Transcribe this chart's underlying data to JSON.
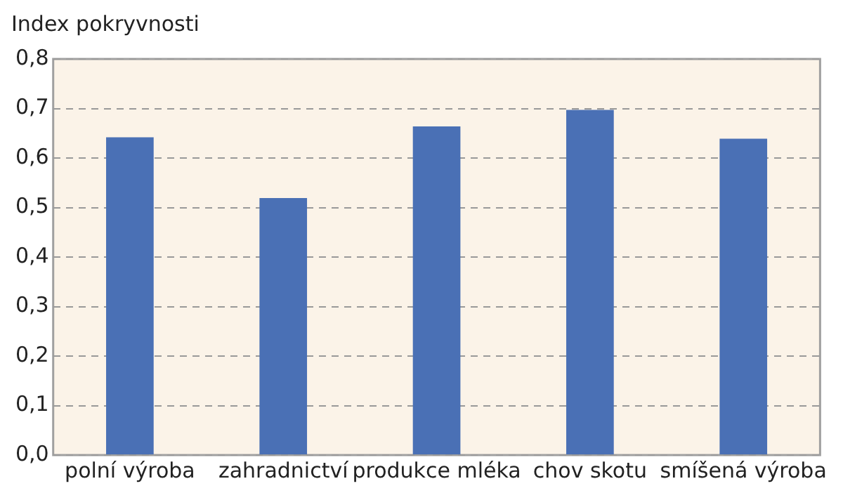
{
  "chart_data": {
    "type": "bar",
    "ylabel": "Index pokryvnosti",
    "categories": [
      "polní výroba",
      "zahradnictví",
      "produkce mléka",
      "chov skotu",
      "smíšená výroba"
    ],
    "values": [
      0.642,
      0.519,
      0.664,
      0.697,
      0.639
    ],
    "color": "#4a70b5",
    "ylim": [
      0,
      0.8
    ],
    "yticks": [
      {
        "value": 0,
        "label": "0,0"
      },
      {
        "value": 0.1,
        "label": "0,1"
      },
      {
        "value": 0.2,
        "label": "0,2"
      },
      {
        "value": 0.3,
        "label": "0,3"
      },
      {
        "value": 0.4,
        "label": "0,4"
      },
      {
        "value": 0.5,
        "label": "0,5"
      },
      {
        "value": 0.6,
        "label": "0,6"
      },
      {
        "value": 0.7,
        "label": "0,7"
      },
      {
        "value": 0.8,
        "label": "0,8"
      }
    ],
    "grid": "y",
    "legend": false
  }
}
